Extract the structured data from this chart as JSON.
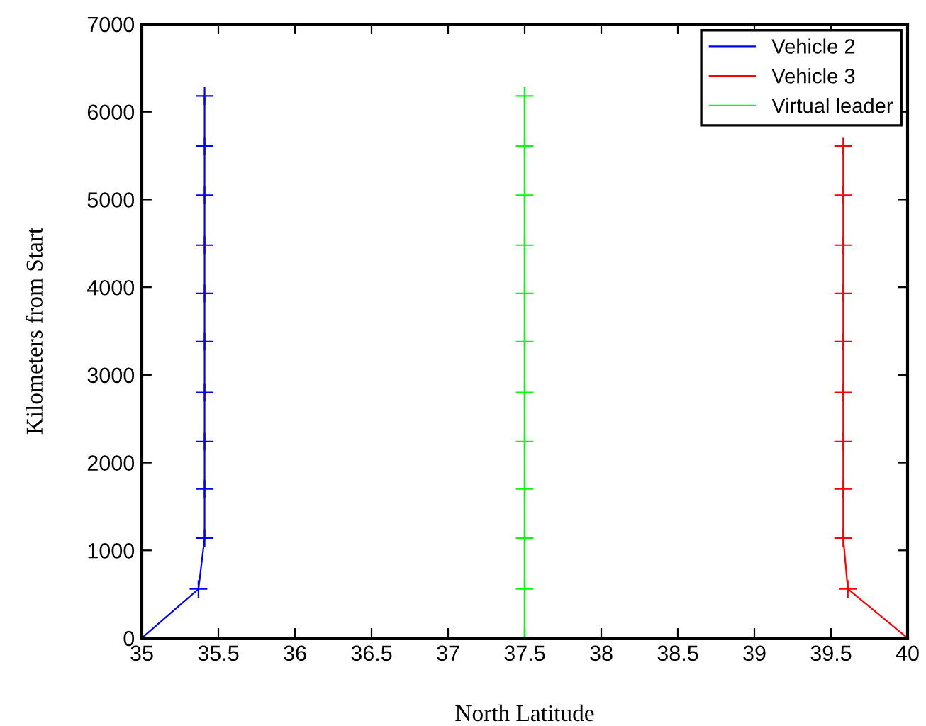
{
  "chart_data": {
    "type": "line",
    "xlabel": "North Latitude",
    "ylabel": "Kilometers from Start",
    "series": [
      {
        "name": "Vehicle 2",
        "color": "#0000ff",
        "x": [
          35,
          35.37,
          35.41,
          35.41,
          35.41,
          35.41,
          35.41,
          35.41,
          35.41,
          35.41,
          35.41,
          35.41
        ],
        "values": [
          0,
          560,
          1140,
          1700,
          2240,
          2800,
          3380,
          3930,
          4480,
          5050,
          5610,
          6180
        ]
      },
      {
        "name": "Vehicle 3",
        "color": "#ff0000",
        "x": [
          40,
          39.61,
          39.58,
          39.58,
          39.58,
          39.58,
          39.58,
          39.58,
          39.58,
          39.58,
          39.58,
          null
        ],
        "values": [
          0,
          560,
          1140,
          1700,
          2240,
          2800,
          3380,
          3930,
          4480,
          5050,
          5610,
          null
        ]
      },
      {
        "name": "Virtual leader",
        "color": "#00ff00",
        "x": [
          37.5,
          37.5,
          37.5,
          37.5,
          37.5,
          37.5,
          37.5,
          37.5,
          37.5,
          37.5,
          37.5,
          37.5
        ],
        "values": [
          0,
          560,
          1140,
          1700,
          2240,
          2800,
          3380,
          3930,
          4480,
          5050,
          5610,
          6180
        ]
      }
    ],
    "xlim": [
      35,
      40
    ],
    "xticks": [
      35,
      35.5,
      36,
      36.5,
      37,
      37.5,
      38,
      38.5,
      39,
      39.5,
      40
    ],
    "ylim": [
      0,
      7000
    ],
    "yticks": [
      0,
      1000,
      2000,
      3000,
      4000,
      5000,
      6000,
      7000
    ],
    "marker": "cross",
    "line_style": "solid",
    "grid": false,
    "legend": "top right"
  }
}
